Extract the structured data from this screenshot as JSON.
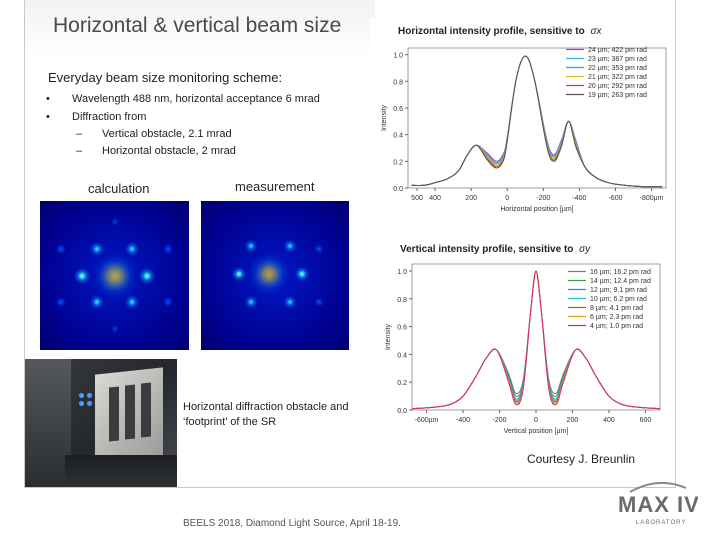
{
  "slide": {
    "title": "Horizontal & vertical beam size",
    "intro": "Everyday beam size monitoring scheme:",
    "bullets": [
      {
        "text": "Wavelength 488 nm, horizontal acceptance 6 mrad"
      },
      {
        "text": "Diffraction from",
        "subs": [
          "Vertical obstacle, 2.1 mrad",
          "Horizontal obstacle, 2 mrad"
        ]
      }
    ],
    "calc_label": "calculation",
    "meas_label": "measurement",
    "photo_caption_lines": [
      "Horizontal diffraction obstacle and",
      "‘footprint’ of the SR"
    ],
    "courtesy": "Courtesy J. Breunlin",
    "footer": "BEELS 2018,  Diamond Light Source, April 18-19.",
    "logo": {
      "text": "MAX IV",
      "sub": "LABORATORY"
    }
  },
  "chart_data": [
    {
      "type": "line",
      "title": "Horizontal intensity profile, sensitive to",
      "title_symbol": "σx",
      "xlabel": "Horizontal position [µm]",
      "ylabel": "Intensity",
      "x_ticks": [
        "500",
        "400",
        "200",
        "0",
        "-200",
        "-400",
        "-600",
        "-800µm"
      ],
      "x_tick_values": [
        500,
        400,
        200,
        0,
        -200,
        -400,
        -600,
        -800
      ],
      "xlim": [
        550,
        -880
      ],
      "ylim": [
        0,
        1.05
      ],
      "y_ticks": [
        "0.0",
        "0.2",
        "0.4",
        "0.6",
        "0.8",
        "1.0"
      ],
      "y_tick_values": [
        0,
        0.2,
        0.4,
        0.6,
        0.8,
        1.0
      ],
      "legend_position": "top-right",
      "profile_x": [
        530,
        460,
        400,
        330,
        270,
        220,
        170,
        110,
        60,
        20,
        0,
        -50,
        -100,
        -150,
        -220,
        -260,
        -300,
        -340,
        -380,
        -430,
        -490,
        -560,
        -650,
        -760,
        -860
      ],
      "series": [
        {
          "name": "24 µm; 422 pm rad",
          "color": "#b03ad0",
          "y": [
            0.02,
            0.02,
            0.04,
            0.07,
            0.13,
            0.25,
            0.32,
            0.26,
            0.2,
            0.26,
            0.38,
            0.82,
            0.99,
            0.82,
            0.36,
            0.25,
            0.36,
            0.5,
            0.36,
            0.16,
            0.08,
            0.04,
            0.02,
            0.01,
            0.01
          ]
        },
        {
          "name": "23 µm; 387 pm rad",
          "color": "#2fb3e6",
          "y": [
            0.02,
            0.02,
            0.04,
            0.07,
            0.13,
            0.25,
            0.32,
            0.25,
            0.19,
            0.25,
            0.37,
            0.82,
            0.99,
            0.82,
            0.35,
            0.24,
            0.35,
            0.5,
            0.35,
            0.16,
            0.08,
            0.04,
            0.02,
            0.01,
            0.01
          ]
        },
        {
          "name": "22 µm; 353 pm rad",
          "color": "#1fb8a2",
          "y": [
            0.02,
            0.02,
            0.04,
            0.07,
            0.13,
            0.25,
            0.32,
            0.24,
            0.18,
            0.24,
            0.37,
            0.82,
            0.99,
            0.82,
            0.34,
            0.23,
            0.34,
            0.5,
            0.34,
            0.16,
            0.08,
            0.04,
            0.02,
            0.01,
            0.01
          ]
        },
        {
          "name": "21 µm; 322 pm rad",
          "color": "#e8b82a",
          "y": [
            0.02,
            0.02,
            0.04,
            0.07,
            0.13,
            0.25,
            0.32,
            0.23,
            0.17,
            0.23,
            0.36,
            0.82,
            0.99,
            0.82,
            0.33,
            0.22,
            0.33,
            0.5,
            0.33,
            0.16,
            0.08,
            0.04,
            0.02,
            0.01,
            0.01
          ]
        },
        {
          "name": "20 µm; 292 pm rad",
          "color": "#e03a2e",
          "y": [
            0.02,
            0.02,
            0.04,
            0.07,
            0.13,
            0.25,
            0.32,
            0.22,
            0.16,
            0.22,
            0.36,
            0.82,
            0.99,
            0.82,
            0.32,
            0.21,
            0.32,
            0.5,
            0.32,
            0.16,
            0.08,
            0.04,
            0.02,
            0.01,
            0.01
          ]
        },
        {
          "name": "19 µm; 263 pm rad",
          "color": "#555555",
          "y": [
            0.02,
            0.02,
            0.04,
            0.07,
            0.13,
            0.25,
            0.32,
            0.21,
            0.15,
            0.21,
            0.35,
            0.82,
            0.99,
            0.82,
            0.31,
            0.2,
            0.31,
            0.5,
            0.31,
            0.16,
            0.08,
            0.04,
            0.02,
            0.01,
            0.01
          ]
        }
      ]
    },
    {
      "type": "line",
      "title": "Vertical intensity profile, sensitive to",
      "title_symbol": "σy",
      "xlabel": "Vertical position [µm]",
      "ylabel": "Intensity",
      "x_ticks": [
        "-600µm",
        "-400",
        "-200",
        "0",
        "200",
        "400",
        "600"
      ],
      "x_tick_values": [
        -600,
        -400,
        -200,
        0,
        200,
        400,
        600
      ],
      "xlim": [
        -680,
        680
      ],
      "ylim": [
        0,
        1.05
      ],
      "y_ticks": [
        "0.0",
        "0.2",
        "0.4",
        "0.6",
        "0.8",
        "1.0"
      ],
      "y_tick_values": [
        0,
        0.2,
        0.4,
        0.6,
        0.8,
        1.0
      ],
      "legend_position": "top-right",
      "profile_x": [
        -680,
        -560,
        -470,
        -400,
        -330,
        -270,
        -215,
        -150,
        -110,
        -70,
        -30,
        0,
        30,
        70,
        110,
        150,
        215,
        270,
        330,
        400,
        470,
        560,
        680
      ],
      "series": [
        {
          "name": "16 µm; 16.2 pm rad",
          "color": "#777777",
          "y": [
            0.01,
            0.02,
            0.04,
            0.1,
            0.24,
            0.38,
            0.43,
            0.26,
            0.12,
            0.22,
            0.7,
            1.0,
            0.7,
            0.22,
            0.12,
            0.26,
            0.43,
            0.38,
            0.24,
            0.1,
            0.04,
            0.02,
            0.01
          ]
        },
        {
          "name": "14 µm; 12.4 pm rad",
          "color": "#2da84a",
          "y": [
            0.01,
            0.02,
            0.04,
            0.1,
            0.24,
            0.38,
            0.43,
            0.25,
            0.1,
            0.2,
            0.7,
            1.0,
            0.7,
            0.2,
            0.1,
            0.25,
            0.43,
            0.38,
            0.24,
            0.1,
            0.04,
            0.02,
            0.01
          ]
        },
        {
          "name": "12 µm; 9.1 pm rad",
          "color": "#3a86d8",
          "y": [
            0.01,
            0.02,
            0.04,
            0.1,
            0.24,
            0.38,
            0.43,
            0.24,
            0.08,
            0.19,
            0.7,
            1.0,
            0.7,
            0.19,
            0.08,
            0.24,
            0.43,
            0.38,
            0.24,
            0.1,
            0.04,
            0.02,
            0.01
          ]
        },
        {
          "name": "10 µm; 6.2 pm rad",
          "color": "#2fc4d6",
          "y": [
            0.01,
            0.02,
            0.04,
            0.1,
            0.24,
            0.38,
            0.43,
            0.23,
            0.07,
            0.18,
            0.7,
            1.0,
            0.7,
            0.18,
            0.07,
            0.23,
            0.43,
            0.38,
            0.24,
            0.1,
            0.04,
            0.02,
            0.01
          ]
        },
        {
          "name": "8 µm; 4.1 pm rad",
          "color": "#b05a2a",
          "y": [
            0.01,
            0.02,
            0.04,
            0.1,
            0.24,
            0.38,
            0.43,
            0.22,
            0.06,
            0.17,
            0.7,
            1.0,
            0.7,
            0.17,
            0.06,
            0.22,
            0.43,
            0.38,
            0.24,
            0.1,
            0.04,
            0.02,
            0.01
          ]
        },
        {
          "name": "6 µm; 2.3 pm rad",
          "color": "#e8a020",
          "y": [
            0.01,
            0.02,
            0.04,
            0.1,
            0.24,
            0.38,
            0.43,
            0.21,
            0.05,
            0.16,
            0.7,
            1.0,
            0.7,
            0.16,
            0.05,
            0.21,
            0.43,
            0.38,
            0.24,
            0.1,
            0.04,
            0.02,
            0.01
          ]
        },
        {
          "name": "4 µm; 1.0 pm rad",
          "color": "#d92a6a",
          "y": [
            0.01,
            0.02,
            0.04,
            0.1,
            0.24,
            0.38,
            0.43,
            0.2,
            0.04,
            0.15,
            0.7,
            1.0,
            0.7,
            0.15,
            0.04,
            0.2,
            0.43,
            0.38,
            0.24,
            0.1,
            0.04,
            0.02,
            0.01
          ]
        }
      ]
    }
  ]
}
